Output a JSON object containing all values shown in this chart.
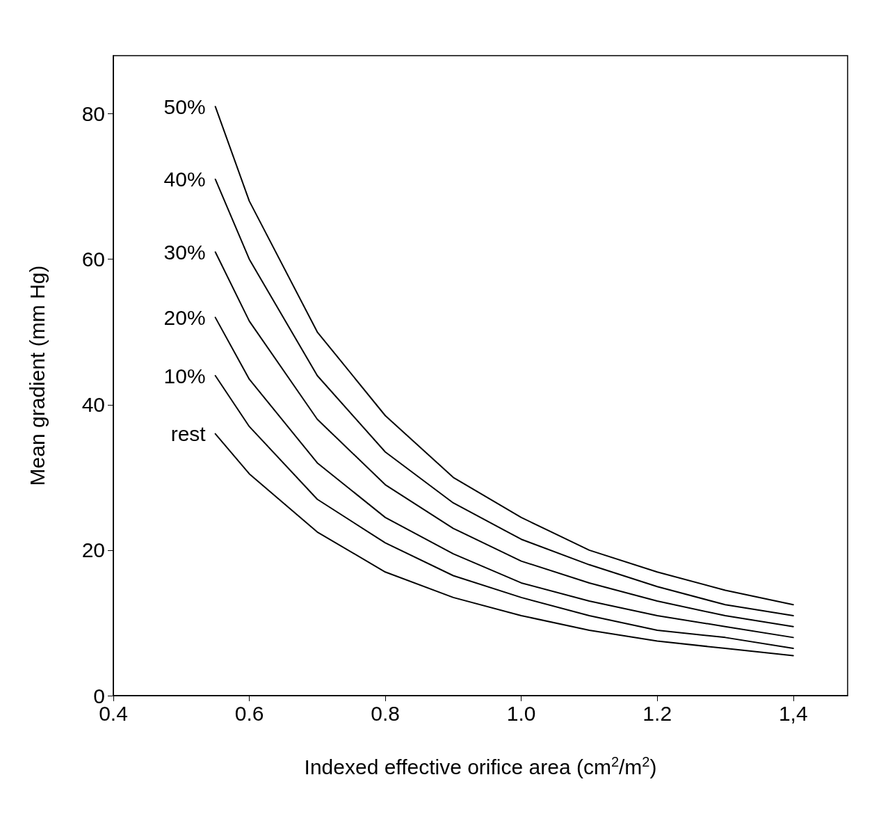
{
  "chart_data": {
    "type": "line",
    "xlabel": "Indexed effective orifice area (cm$^{2}$/m$^{2}$)",
    "ylabel": "Mean gradient (mm Hg)",
    "x": [
      0.55,
      0.6,
      0.7,
      0.8,
      0.9,
      1.0,
      1.1,
      1.2,
      1.3,
      1.4
    ],
    "series": [
      {
        "name": "50%",
        "color": "#000000",
        "values": [
          81,
          68,
          50,
          38.5,
          30,
          24.5,
          20,
          17,
          14.5,
          12.5
        ]
      },
      {
        "name": "40%",
        "color": "#000000",
        "values": [
          71,
          60,
          44,
          33.5,
          26.5,
          21.5,
          18,
          15,
          12.5,
          11
        ]
      },
      {
        "name": "30%",
        "color": "#000000",
        "values": [
          61,
          51.5,
          38,
          29,
          23,
          18.5,
          15.5,
          13,
          11,
          9.5
        ]
      },
      {
        "name": "20%",
        "color": "#000000",
        "values": [
          52,
          43.5,
          32,
          24.5,
          19.5,
          15.5,
          13,
          11,
          9.5,
          8
        ]
      },
      {
        "name": "10%",
        "color": "#000000",
        "values": [
          44,
          37,
          27,
          21,
          16.5,
          13.5,
          11,
          9,
          8,
          6.5
        ]
      },
      {
        "name": "rest",
        "color": "#000000",
        "values": [
          36,
          30.5,
          22.5,
          17,
          13.5,
          11,
          9,
          7.5,
          6.5,
          5.5
        ]
      }
    ],
    "xlim": [
      0.4,
      1.48
    ],
    "xticks": [
      0.4,
      0.6,
      0.8,
      {
        "value": 1.0,
        "label": "1.0"
      },
      1.2,
      {
        "value": 1.4,
        "label": "1,4"
      }
    ],
    "ylim": [
      0,
      88
    ],
    "yticks": [
      0,
      20,
      40,
      60,
      80
    ],
    "grid": false,
    "legend": false,
    "marker": "none",
    "line_style": "solid"
  }
}
